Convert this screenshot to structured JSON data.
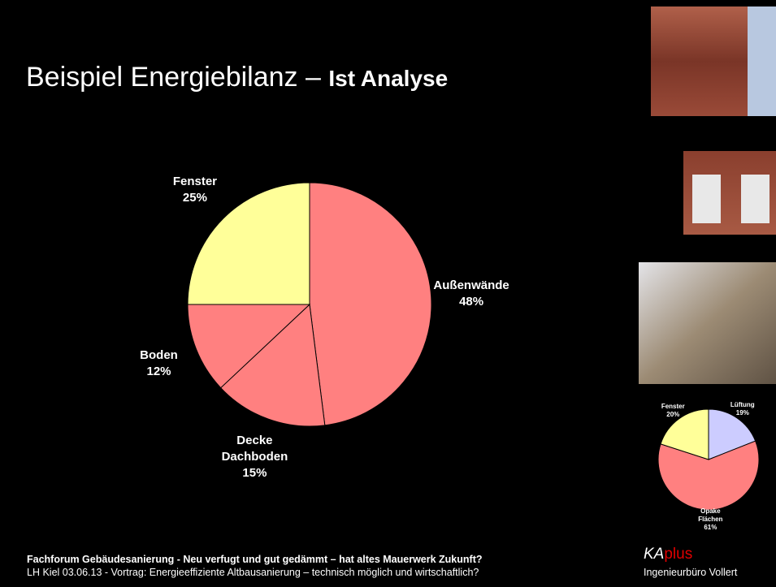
{
  "slide": {
    "title": "Beispiel Energiebilanz –",
    "title_bold": "Ist Analyse",
    "footer": {
      "line1": "Fachforum Gebäudesanierung - Neu verfugt und gut gedämmt – hat altes Mauerwerk Zukunft?",
      "line2": "LH Kiel 03.06.13 - Vortrag: Energieeffiziente Altbausanierung – technisch möglich und wirtschaftlich?"
    },
    "logo": {
      "ka": "KA",
      "plus": "plus",
      "company": "Ingenieurbüro Vollert"
    }
  },
  "chart_data": [
    {
      "type": "pie",
      "categories": [
        "Außenwände",
        "Decke Dachboden",
        "Boden",
        "Fenster"
      ],
      "values": [
        48,
        15,
        12,
        25
      ],
      "value_labels": [
        "48%",
        "15%",
        "12%",
        "25%"
      ],
      "colors": [
        "#ff8080",
        "#ff8080",
        "#ff8080",
        "#ffff99"
      ]
    },
    {
      "type": "pie",
      "categories": [
        "Lüftung",
        "Opake Flächen",
        "Fenster"
      ],
      "values": [
        19,
        61,
        20
      ],
      "value_labels": [
        "19%",
        "61%",
        "20%"
      ],
      "colors": [
        "#ccccff",
        "#ff8080",
        "#ffff99"
      ]
    }
  ]
}
